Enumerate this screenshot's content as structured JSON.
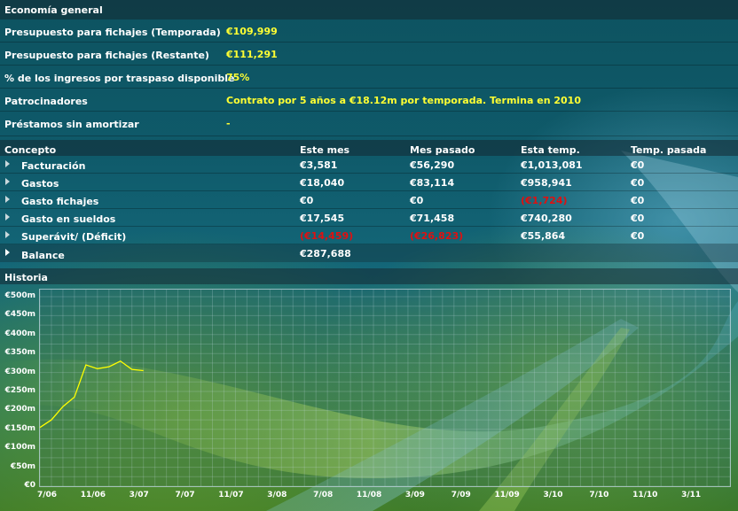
{
  "sections": {
    "economy_title": "Economía general",
    "history_title": "Historia"
  },
  "summary": [
    {
      "label": "Presupuesto para fichajes (Temporada)",
      "value": "€109,999"
    },
    {
      "label": "Presupuesto para fichajes (Restante)",
      "value": "€111,291"
    },
    {
      "label": "% de los ingresos por traspaso disponible",
      "value": "75%"
    },
    {
      "label": "Patrocinadores",
      "value": "Contrato por 5 años a €18.12m por temporada. Termina en 2010"
    },
    {
      "label": "Préstamos sin amortizar",
      "value": "-"
    }
  ],
  "table": {
    "headers": [
      "Concepto",
      "Este mes",
      "Mes pasado",
      "Esta temp.",
      "Temp. pasada"
    ],
    "rows": [
      {
        "concept": "Facturación",
        "this_month": "€3,581",
        "last_month": "€56,290",
        "this_season": "€1,013,081",
        "last_season": "€0"
      },
      {
        "concept": "Gastos",
        "this_month": "€18,040",
        "last_month": "€83,114",
        "this_season": "€958,941",
        "last_season": "€0"
      },
      {
        "concept": "Gasto fichajes",
        "this_month": "€0",
        "last_month": "€0",
        "this_season": "(€1,724)",
        "last_season": "€0"
      },
      {
        "concept": "Gasto en sueldos",
        "this_month": "€17,545",
        "last_month": "€71,458",
        "this_season": "€740,280",
        "last_season": "€0"
      },
      {
        "concept": "Superávit/ (Déficit)",
        "this_month": "(€14,459)",
        "last_month": "(€26,823)",
        "this_season": "€55,864",
        "last_season": "€0"
      }
    ],
    "balance": {
      "concept": "Balance",
      "this_month": "€287,688"
    }
  },
  "colors": {
    "value_yellow": "#ffff33",
    "negative_red": "#e01010",
    "line": "#ffff00"
  },
  "chart_data": {
    "type": "line",
    "title": "Historia",
    "xlabel": "",
    "ylabel": "",
    "x_ticks": [
      "7/06",
      "11/06",
      "3/07",
      "7/07",
      "11/07",
      "3/08",
      "7/08",
      "11/08",
      "3/09",
      "7/09",
      "11/09",
      "3/10",
      "7/10",
      "11/10",
      "3/11"
    ],
    "y_ticks": [
      "€0",
      "€50m",
      "€100m",
      "€150m",
      "€200m",
      "€250m",
      "€300m",
      "€350m",
      "€400m",
      "€450m",
      "€500m"
    ],
    "ylim": [
      0,
      500
    ],
    "xlim": [
      0,
      60
    ],
    "grid": true,
    "series": [
      {
        "x": [
          0,
          1,
          2,
          3,
          4,
          5,
          6,
          7,
          8,
          9
        ],
        "y": [
          155,
          175,
          210,
          235,
          320,
          310,
          315,
          330,
          308,
          305
        ]
      }
    ]
  }
}
